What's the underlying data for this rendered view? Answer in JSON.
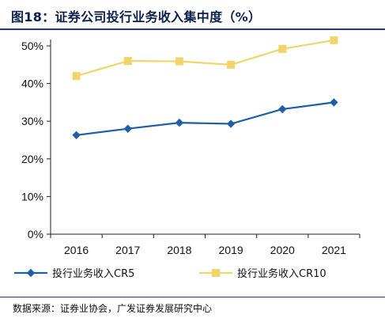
{
  "figure": {
    "title": "图18：证券公司投行业务收入集中度（%）",
    "source": "数据来源：证券业协会，广发证券发展研究中心"
  },
  "chart_data": {
    "type": "line",
    "title": "图18：证券公司投行业务收入集中度（%）",
    "xlabel": "",
    "ylabel": "",
    "categories": [
      "2016",
      "2017",
      "2018",
      "2019",
      "2020",
      "2021"
    ],
    "ylim": [
      0,
      50
    ],
    "yticks": [
      0,
      10,
      20,
      30,
      40,
      50
    ],
    "ytick_labels": [
      "0%",
      "10%",
      "20%",
      "30%",
      "40%",
      "50%"
    ],
    "grid": false,
    "legend_position": "bottom",
    "series": [
      {
        "name": "投行业务收入CR5",
        "values": [
          26.3,
          28.0,
          29.6,
          29.3,
          33.2,
          35.0
        ],
        "color": "#1f5fa8",
        "marker": "diamond"
      },
      {
        "name": "投行业务收入CR10",
        "values": [
          42.0,
          46.0,
          45.9,
          45.0,
          49.2,
          51.5
        ],
        "color": "#f2d46a",
        "marker": "square"
      }
    ]
  }
}
